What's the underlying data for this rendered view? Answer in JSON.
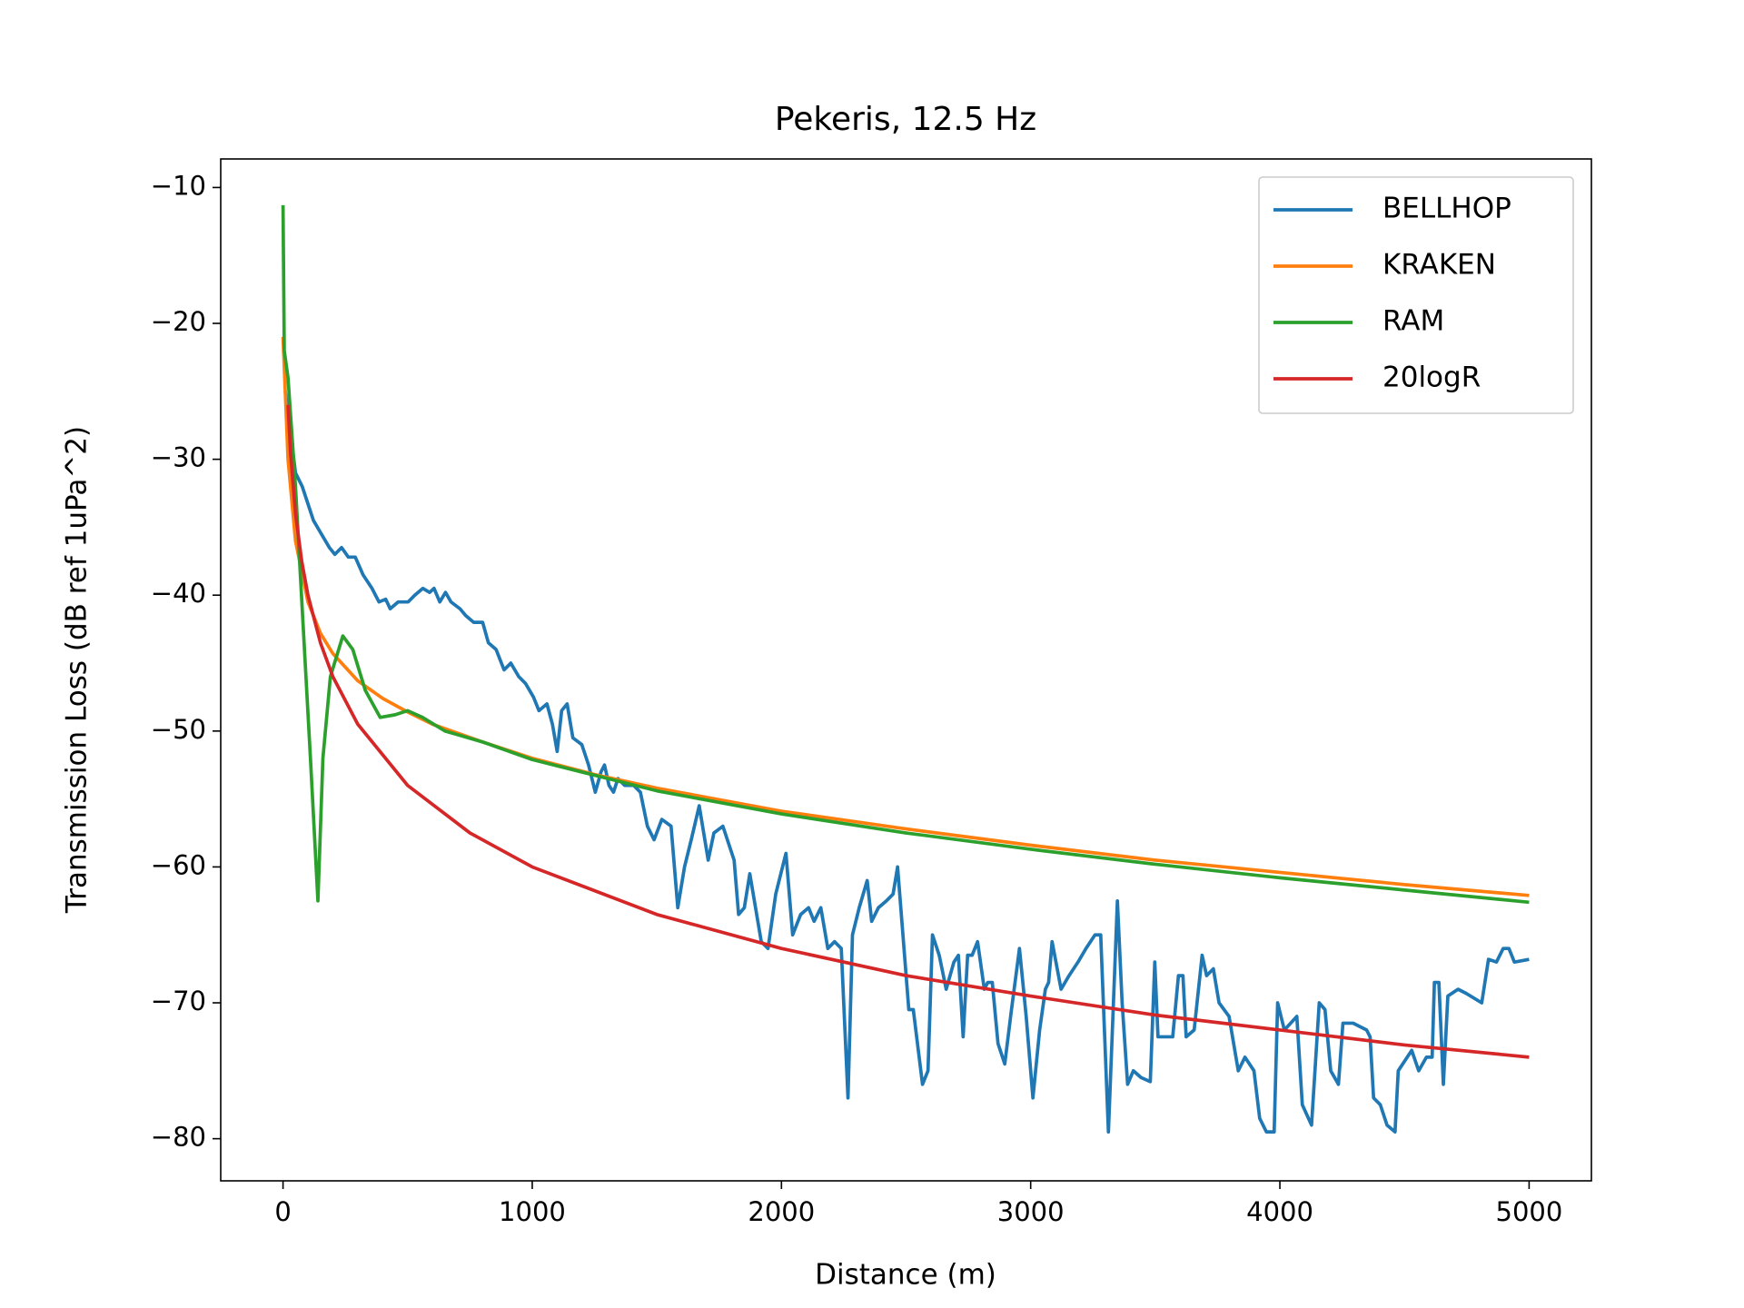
{
  "chart_data": {
    "type": "line",
    "title": "Pekeris, 12.5 Hz",
    "x_label": "Distance (m)",
    "y_label": "Transmission Loss (dB ref 1uPa^2)",
    "xlim": [
      -250,
      5250
    ],
    "ylim": [
      -83.1,
      -7.9
    ],
    "xticks": [
      0,
      1000,
      2000,
      3000,
      4000,
      5000
    ],
    "yticks": [
      {
        "value": -10,
        "label": "−10"
      },
      {
        "value": -20,
        "label": "−20"
      },
      {
        "value": -30,
        "label": "−30"
      },
      {
        "value": -40,
        "label": "−40"
      },
      {
        "value": -50,
        "label": "−50"
      },
      {
        "value": -60,
        "label": "−60"
      },
      {
        "value": -70,
        "label": "−70"
      },
      {
        "value": -80,
        "label": "−80"
      }
    ],
    "grid": false,
    "legend": "upper right",
    "series": [
      {
        "name": "BELLHOP",
        "color": "#1f77b4",
        "x": [
          9,
          50,
          77,
          95,
          122,
          154,
          186,
          208,
          235,
          262,
          290,
          321,
          357,
          385,
          412,
          430,
          462,
          502,
          529,
          561,
          588,
          606,
          629,
          652,
          674,
          710,
          733,
          765,
          801,
          824,
          855,
          887,
          914,
          946,
          973,
          1005,
          1027,
          1059,
          1081,
          1100,
          1118,
          1140,
          1163,
          1199,
          1226,
          1253,
          1276,
          1290,
          1308,
          1326,
          1344,
          1371,
          1407,
          1434,
          1462,
          1489,
          1520,
          1557,
          1584,
          1611,
          1638,
          1670,
          1706,
          1729,
          1765,
          1810,
          1828,
          1851,
          1873,
          1919,
          1946,
          1977,
          2018,
          2045,
          2077,
          2109,
          2131,
          2158,
          2186,
          2213,
          2240,
          2267,
          2285,
          2312,
          2344,
          2362,
          2389,
          2421,
          2448,
          2466,
          2511,
          2529,
          2566,
          2588,
          2606,
          2633,
          2661,
          2692,
          2710,
          2729,
          2747,
          2765,
          2787,
          2814,
          2828,
          2846,
          2869,
          2896,
          2923,
          2955,
          2982,
          3009,
          3036,
          3059,
          3072,
          3086,
          3122,
          3154,
          3190,
          3222,
          3258,
          3281,
          3312,
          3348,
          3367,
          3389,
          3412,
          3443,
          3480,
          3498,
          3511,
          3570,
          3593,
          3611,
          3624,
          3656,
          3688,
          3706,
          3733,
          3756,
          3796,
          3833,
          3860,
          3896,
          3919,
          3946,
          3977,
          3991,
          4018,
          4068,
          4090,
          4127,
          4158,
          4181,
          4204,
          4235,
          4253,
          4294,
          4348,
          4362,
          4376,
          4403,
          4430,
          4462,
          4475,
          4529,
          4557,
          4588,
          4611,
          4620,
          4638,
          4656,
          4674,
          4715,
          4747,
          4810,
          4837,
          4869,
          4896,
          4919,
          4941,
          5000
        ],
        "values": [
          -25,
          -31,
          -32,
          -33,
          -34.5,
          -35.5,
          -36.5,
          -37,
          -36.5,
          -37.2,
          -37.2,
          -38.5,
          -39.5,
          -40.5,
          -40.3,
          -41,
          -40.5,
          -40.5,
          -40,
          -39.5,
          -39.8,
          -39.5,
          -40.5,
          -39.8,
          -40.5,
          -41,
          -41.5,
          -42,
          -42,
          -43.5,
          -44,
          -45.5,
          -45,
          -46,
          -46.5,
          -47.5,
          -48.5,
          -48,
          -49.5,
          -51.5,
          -48.5,
          -48,
          -50.5,
          -51,
          -52.5,
          -54.5,
          -53,
          -52.5,
          -54,
          -54.5,
          -53.5,
          -54,
          -54,
          -54.5,
          -57,
          -58,
          -56.5,
          -57,
          -63,
          -60,
          -58,
          -55.5,
          -59.5,
          -57.5,
          -57,
          -59.5,
          -63.5,
          -63,
          -60.5,
          -65.5,
          -66,
          -62,
          -59,
          -65,
          -63.5,
          -63,
          -64,
          -63,
          -66,
          -65.5,
          -66,
          -77,
          -65,
          -63,
          -61,
          -64,
          -63,
          -62.5,
          -62,
          -60,
          -70.5,
          -70.5,
          -76,
          -75,
          -65,
          -66.5,
          -69,
          -67,
          -66.5,
          -72.5,
          -66.5,
          -66.5,
          -65.5,
          -69,
          -68.5,
          -68.5,
          -73,
          -74.5,
          -70.5,
          -66,
          -71,
          -77,
          -72,
          -69,
          -68.5,
          -65.5,
          -69,
          -68,
          -67,
          -66,
          -65,
          -65,
          -79.5,
          -62.5,
          -70,
          -76,
          -75,
          -75.5,
          -75.8,
          -67,
          -72.5,
          -72.5,
          -68,
          -68,
          -72.5,
          -72,
          -66.5,
          -68,
          -67.5,
          -70,
          -71,
          -75,
          -74,
          -75,
          -78.5,
          -79.5,
          -79.5,
          -70,
          -72,
          -71,
          -77.5,
          -79,
          -70,
          -70.5,
          -75,
          -76,
          -71.5,
          -71.5,
          -72,
          -72.5,
          -77,
          -77.5,
          -79,
          -79.5,
          -75,
          -73.5,
          -75,
          -74,
          -74,
          -68.5,
          -68.5,
          -76,
          -69.5,
          -69,
          -69.3,
          -70,
          -66.8,
          -67,
          -66,
          -66,
          -67,
          -66.8
        ]
      },
      {
        "name": "KRAKEN",
        "color": "#ff7f0e",
        "x": [
          0,
          20,
          50,
          100,
          150,
          200,
          300,
          400,
          500,
          600,
          800,
          1000,
          1250,
          1500,
          2000,
          2500,
          3000,
          3500,
          4000,
          4500,
          5000
        ],
        "values": [
          -21,
          -30,
          -36,
          -40.5,
          -42.8,
          -44.3,
          -46.3,
          -47.6,
          -48.6,
          -49.5,
          -50.8,
          -52.0,
          -53.2,
          -54.2,
          -55.9,
          -57.2,
          -58.4,
          -59.5,
          -60.4,
          -61.3,
          -62.1
        ]
      },
      {
        "name": "RAM",
        "color": "#2ca02c",
        "x": [
          0,
          5,
          20,
          50,
          80,
          110,
          140,
          160,
          190,
          240,
          280,
          330,
          390,
          450,
          500,
          560,
          650,
          800,
          1000,
          1500,
          2000,
          2500,
          3000,
          3500,
          4000,
          4500,
          5000
        ],
        "values": [
          -11.3,
          -22,
          -24,
          -32,
          -42,
          -52,
          -62.5,
          -52,
          -46,
          -43,
          -44,
          -47,
          -49,
          -48.8,
          -48.5,
          -49,
          -50,
          -50.8,
          -52.1,
          -54.4,
          -56.1,
          -57.5,
          -58.7,
          -59.8,
          -60.8,
          -61.7,
          -62.6
        ]
      },
      {
        "name": "20logR",
        "color": "#d62728",
        "x": [
          20,
          30,
          50,
          75,
          100,
          150,
          200,
          300,
          500,
          750,
          1000,
          1500,
          2000,
          2500,
          3000,
          3500,
          4000,
          4500,
          5000
        ],
        "values": [
          -26.0,
          -29.5,
          -34.0,
          -37.5,
          -40.0,
          -43.5,
          -46.0,
          -49.5,
          -54.0,
          -57.5,
          -60.0,
          -63.5,
          -66.0,
          -68.0,
          -69.5,
          -70.9,
          -72.0,
          -73.1,
          -74.0
        ]
      }
    ]
  }
}
